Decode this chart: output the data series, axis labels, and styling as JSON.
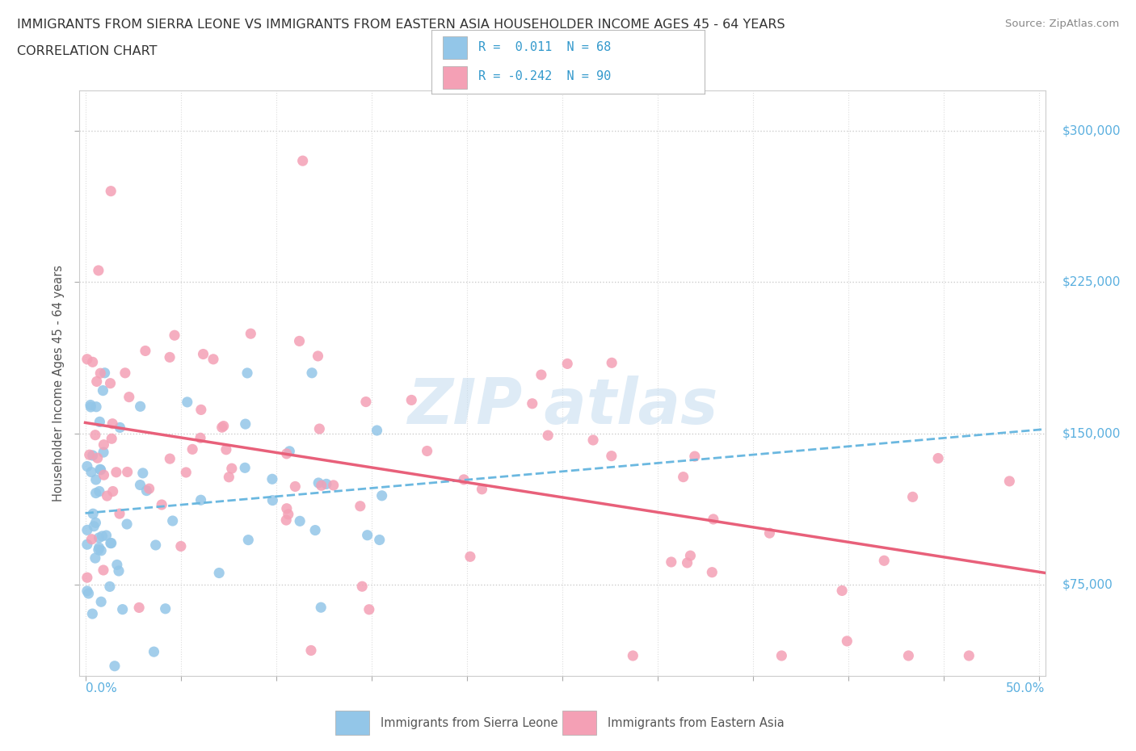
{
  "title_line1": "IMMIGRANTS FROM SIERRA LEONE VS IMMIGRANTS FROM EASTERN ASIA HOUSEHOLDER INCOME AGES 45 - 64 YEARS",
  "title_line2": "CORRELATION CHART",
  "source_text": "Source: ZipAtlas.com",
  "ylabel": "Householder Income Ages 45 - 64 years",
  "color_sierra": "#93C6E8",
  "color_eastern": "#F4A0B5",
  "color_line_sierra": "#6BB8E0",
  "color_line_eastern": "#E8607A",
  "ytick_values": [
    75000,
    150000,
    225000,
    300000
  ],
  "ytick_labels": [
    "$75,000",
    "$150,000",
    "$225,000",
    "$300,000"
  ],
  "r_sierra": 0.011,
  "n_sierra": 68,
  "r_eastern": -0.242,
  "n_eastern": 90,
  "watermark_color": "#C8DEF0"
}
